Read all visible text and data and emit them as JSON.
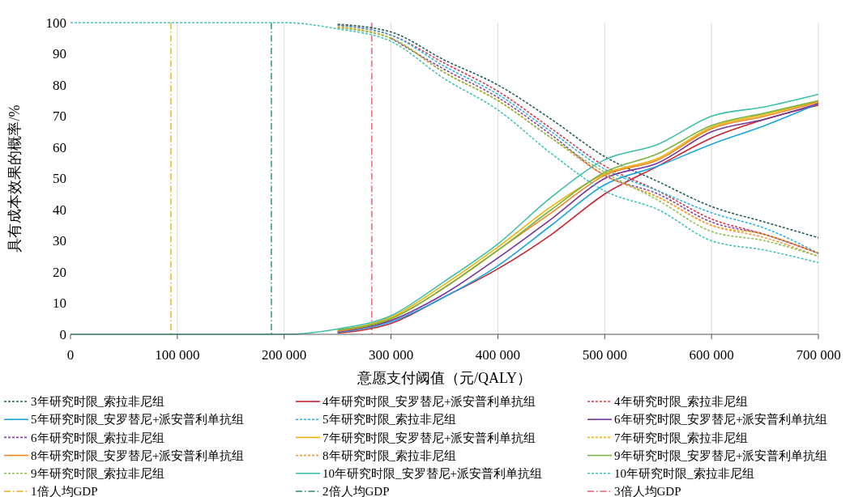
{
  "chart_data": {
    "type": "line",
    "xlabel": "意愿支付阈值（元/QALY）",
    "ylabel": "具有成本效果的概率/%",
    "x": [
      0,
      200000,
      250000,
      300000,
      350000,
      400000,
      450000,
      500000,
      550000,
      600000,
      650000,
      700000
    ],
    "xlim": [
      0,
      700000
    ],
    "xticks": [
      0,
      {
        "value": 100000,
        "label": "100 000"
      },
      {
        "value": 200000,
        "label": "200 000"
      },
      {
        "value": 300000,
        "label": "300 000"
      },
      {
        "value": 400000,
        "label": "400 000"
      },
      {
        "value": 500000,
        "label": "500 000"
      },
      {
        "value": 600000,
        "label": "600 000"
      },
      {
        "value": 700000,
        "label": "700 000"
      }
    ],
    "ylim": [
      0,
      100
    ],
    "yticks": [
      0,
      10,
      20,
      30,
      40,
      50,
      60,
      70,
      80,
      90,
      100
    ],
    "grid": "x",
    "legend": "bottom",
    "marker": "none",
    "series": [
      {
        "name": "3年研究时限_索拉非尼组",
        "color": "#245e5a",
        "line_style": "dashed",
        "values": [
          null,
          null,
          99.5,
          97,
          88,
          80,
          69,
          57,
          49,
          41,
          36,
          31
        ]
      },
      {
        "name": "4年研究时限_安罗替尼+派安普利单抗组",
        "color": "#c8232c",
        "line_style": "solid",
        "values": [
          null,
          null,
          0.4,
          3.5,
          12,
          21,
          32,
          45,
          54,
          63,
          69,
          73.5
        ]
      },
      {
        "name": "4年研究时限_索拉非尼组",
        "color": "#d93644",
        "line_style": "dashed",
        "values": [
          null,
          null,
          99.3,
          96,
          87,
          78,
          66,
          54,
          46,
          37,
          32,
          26
        ]
      },
      {
        "name": "5年研究时限_安罗替尼+派安普利单抗组",
        "color": "#1ca3e0",
        "line_style": "solid",
        "values": [
          null,
          null,
          0.6,
          4,
          12,
          22,
          35,
          48,
          54,
          61,
          67,
          74
        ]
      },
      {
        "name": "5年研究时限_索拉非尼组",
        "color": "#2cb0e6",
        "line_style": "dashed",
        "values": [
          null,
          null,
          99.1,
          96,
          86,
          77,
          65,
          53,
          46,
          39,
          34,
          26
        ]
      },
      {
        "name": "6年研究时限_安罗替尼+派安普利单抗组",
        "color": "#7a3396",
        "line_style": "solid",
        "values": [
          null,
          null,
          0.8,
          4.5,
          13,
          24.5,
          37,
          50,
          55,
          65,
          69,
          74
        ]
      },
      {
        "name": "6年研究时限_索拉非尼组",
        "color": "#8a44b0",
        "line_style": "dashed",
        "values": [
          null,
          null,
          null,
          95,
          85,
          76,
          64,
          51,
          45,
          36,
          32,
          26
        ]
      },
      {
        "name": "7年研究时限_安罗替尼+派安普利单抗组",
        "color": "#f0b400",
        "line_style": "solid",
        "values": [
          null,
          null,
          1.2,
          5.5,
          16,
          28,
          41,
          51.5,
          56.5,
          66.5,
          70.5,
          74.8
        ]
      },
      {
        "name": "7年研究时限_索拉非尼组",
        "color": "#f2b81a",
        "line_style": "dashed",
        "values": [
          null,
          null,
          98.7,
          95,
          84,
          75,
          63,
          51,
          44,
          35,
          32,
          26
        ]
      },
      {
        "name": "8年研究时限_安罗替尼+派安普利单抗组",
        "color": "#f0852a",
        "line_style": "solid",
        "values": [
          null,
          null,
          1,
          5,
          15,
          27,
          39,
          51,
          56,
          66,
          70,
          74.5
        ]
      },
      {
        "name": "8年研究时限_索拉非尼组",
        "color": "#f39a48",
        "line_style": "dashed",
        "values": [
          null,
          null,
          98.5,
          95,
          84,
          75,
          63,
          51,
          44,
          35,
          31,
          25
        ]
      },
      {
        "name": "9年研究时限_安罗替尼+派安普利单抗组",
        "color": "#78b543",
        "line_style": "solid",
        "values": [
          null,
          null,
          1.4,
          5,
          15,
          27,
          40,
          52,
          58,
          67,
          71,
          75
        ]
      },
      {
        "name": "9年研究时限_索拉非尼组",
        "color": "#8cc152",
        "line_style": "dashed",
        "values": [
          null,
          null,
          98.3,
          95,
          84,
          75,
          63,
          52,
          43,
          33,
          30,
          25
        ]
      },
      {
        "name": "10年研究时限_安罗替尼+派安普利单抗组",
        "color": "#3dbfa8",
        "line_style": "solid",
        "values": [
          0,
          0,
          1.7,
          6,
          17,
          29,
          44,
          56,
          61,
          70,
          73,
          77
        ]
      },
      {
        "name": "10年研究时限_索拉非尼组",
        "color": "#44c4b8",
        "line_style": "dashed",
        "values": [
          100,
          100,
          98,
          94,
          82,
          72,
          58,
          46,
          40,
          30,
          27,
          23
        ]
      }
    ],
    "ref_lines": [
      {
        "axis": "x",
        "value": 94000,
        "label": "1倍人均GDP",
        "color": "#e8b020",
        "line_style": "dashdot"
      },
      {
        "axis": "x",
        "value": 188000,
        "label": "2倍人均GDP",
        "color": "#2e8b6e",
        "line_style": "dashdot"
      },
      {
        "axis": "x",
        "value": 282000,
        "label": "3倍人均GDP",
        "color": "#e06070",
        "line_style": "dashdot"
      }
    ]
  }
}
